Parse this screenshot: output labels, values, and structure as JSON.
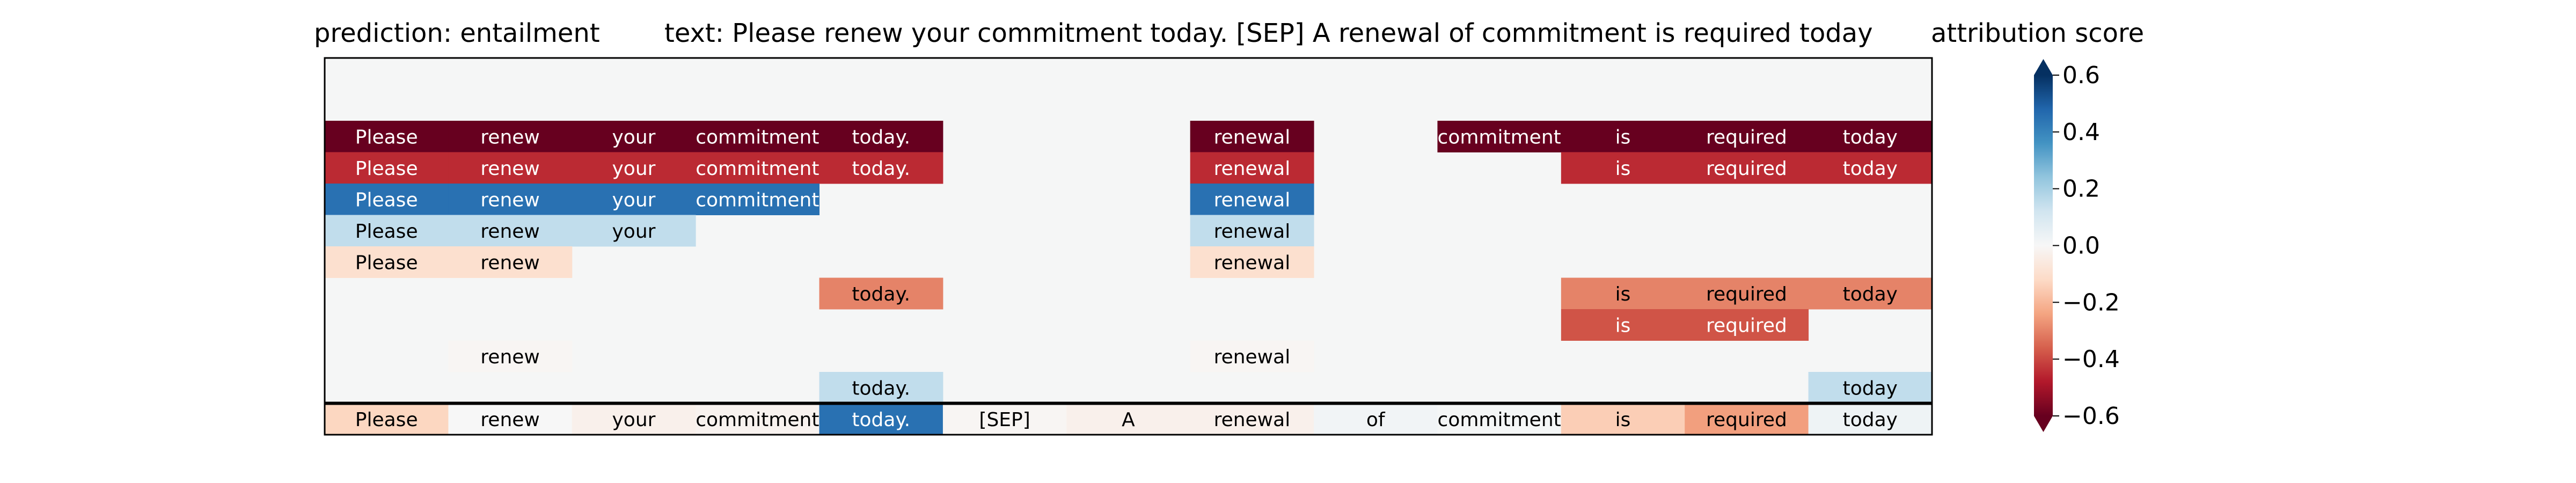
{
  "chart_data": {
    "type": "heatmap",
    "title_left": "prediction:  entailment",
    "title_right": "text:  Please renew your commitment today. [SEP] A renewal of commitment is required today",
    "colorbar": {
      "label": "attribution score",
      "ticks": [
        0.6,
        0.4,
        0.2,
        0.0,
        -0.2,
        -0.4,
        -0.6
      ],
      "tick_labels": [
        "0.6",
        "0.4",
        "0.2",
        "0.0",
        "−0.2",
        "−0.4",
        "−0.6"
      ],
      "range": [
        -0.6,
        0.6
      ],
      "colormap": "RdBu"
    },
    "tokens": [
      "Please",
      "renew",
      "your",
      "commitment",
      "today.",
      "[SEP]",
      "A",
      "renewal",
      "of",
      "commitment",
      "is",
      "required",
      "today"
    ],
    "rows": [
      {
        "cells": [
          null,
          null,
          null,
          null,
          null,
          null,
          null,
          null,
          null,
          null,
          null,
          null,
          null
        ]
      },
      {
        "cells": [
          null,
          null,
          null,
          null,
          null,
          null,
          null,
          null,
          null,
          null,
          null,
          null,
          null
        ]
      },
      {
        "cells": [
          -0.6,
          -0.6,
          -0.6,
          -0.6,
          -0.6,
          null,
          null,
          -0.6,
          null,
          -0.6,
          -0.6,
          -0.6,
          -0.6
        ]
      },
      {
        "cells": [
          -0.45,
          -0.45,
          -0.45,
          -0.45,
          -0.45,
          null,
          null,
          -0.45,
          null,
          null,
          -0.45,
          -0.45,
          -0.45
        ]
      },
      {
        "cells": [
          0.45,
          0.45,
          0.45,
          0.45,
          null,
          null,
          null,
          0.45,
          null,
          null,
          null,
          null,
          null
        ]
      },
      {
        "cells": [
          0.15,
          0.15,
          0.15,
          null,
          null,
          null,
          null,
          0.15,
          null,
          null,
          null,
          null,
          null
        ]
      },
      {
        "cells": [
          -0.1,
          -0.1,
          null,
          null,
          null,
          null,
          null,
          -0.1,
          null,
          null,
          null,
          null,
          null
        ]
      },
      {
        "cells": [
          null,
          null,
          null,
          null,
          -0.3,
          null,
          null,
          null,
          null,
          null,
          -0.3,
          -0.3,
          -0.3
        ]
      },
      {
        "cells": [
          null,
          null,
          null,
          null,
          null,
          null,
          null,
          null,
          null,
          null,
          -0.38,
          -0.38,
          null
        ]
      },
      {
        "cells": [
          null,
          -0.01,
          null,
          null,
          null,
          null,
          null,
          -0.01,
          null,
          null,
          null,
          null,
          null
        ]
      },
      {
        "cells": [
          null,
          null,
          null,
          null,
          0.15,
          null,
          null,
          null,
          null,
          null,
          null,
          null,
          0.15
        ]
      },
      {
        "cells": [
          -0.13,
          0.0,
          -0.03,
          -0.02,
          0.45,
          -0.01,
          -0.03,
          -0.03,
          0.02,
          0.01,
          -0.15,
          -0.25,
          0.03
        ]
      }
    ]
  }
}
